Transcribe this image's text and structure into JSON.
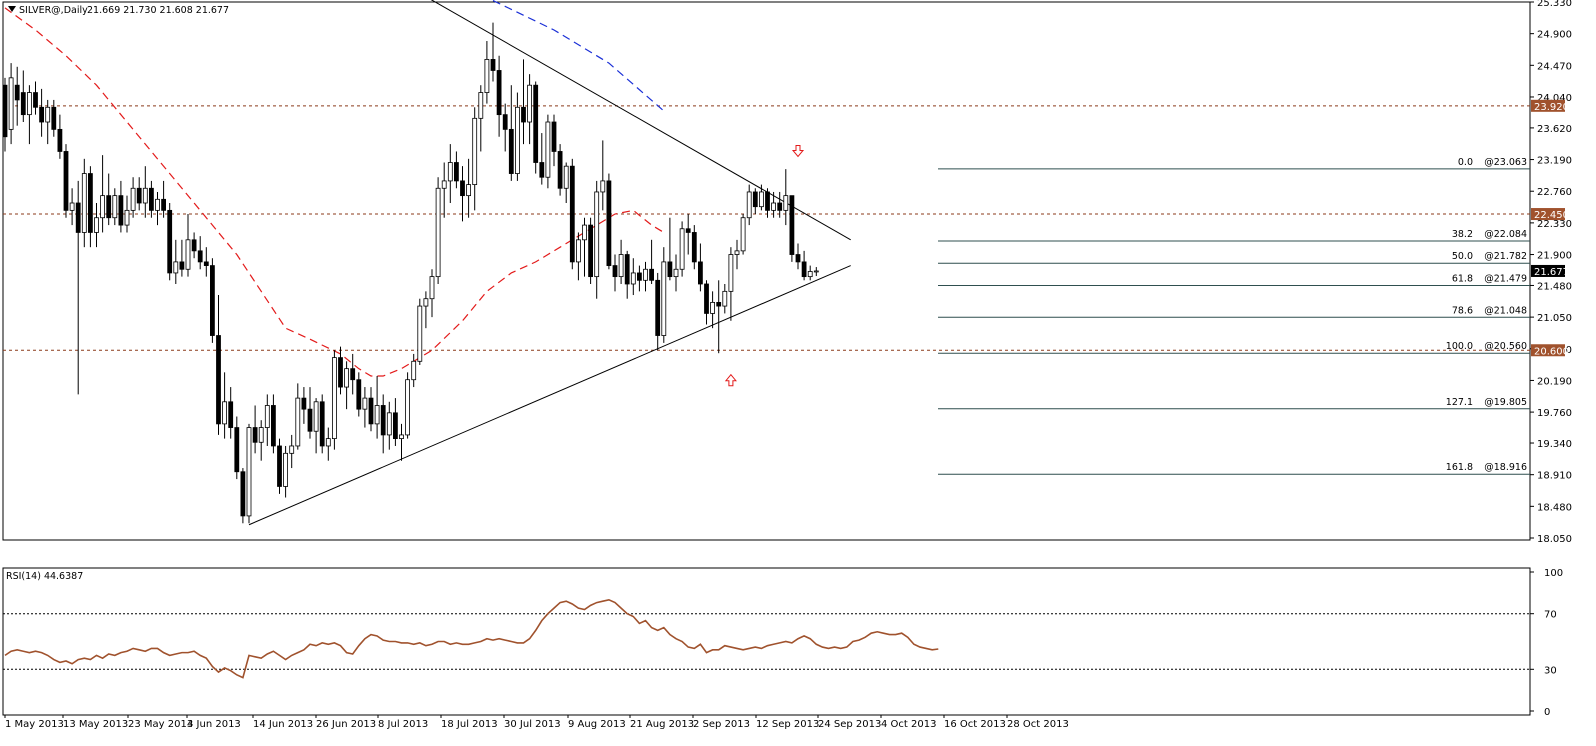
{
  "header": {
    "symbol_timeframe": "SILVER@,Daily",
    "ohlc": "21.669 21.730 21.608 21.677"
  },
  "rsi_header": "RSI(14) 44.6387",
  "colors": {
    "background": "#ffffff",
    "frame": "#000000",
    "bull_body": "#ffffff",
    "bear_body": "#000000",
    "ma_fast": "#e31b1b",
    "ma_slow": "#1a2fd6",
    "level_line": "#8b3a1a",
    "fib_line": "#2f4f4f",
    "trend_line": "#000000",
    "rsi_line": "#a0522d",
    "price_tag": "#a0522d",
    "current_tag": "#000000",
    "arrow": "#e31b1b"
  },
  "chart_data": [
    {
      "type": "candlestick",
      "title": "SILVER@,Daily",
      "y_axis_ticks": [
        "25.330",
        "24.900",
        "24.470",
        "24.040",
        "23.620",
        "23.190",
        "22.760",
        "22.330",
        "21.900",
        "21.480",
        "21.050",
        "20.620",
        "20.190",
        "19.760",
        "19.340",
        "18.910",
        "18.480",
        "18.050"
      ],
      "ylim": [
        18.05,
        25.33
      ],
      "x_axis_labels": [
        "1 May 2013",
        "13 May 2013",
        "23 May 2013",
        "4 Jun 2013",
        "14 Jun 2013",
        "26 Jun 2013",
        "8 Jul 2013",
        "18 Jul 2013",
        "30 Jul 2013",
        "9 Aug 2013",
        "21 Aug 2013",
        "2 Sep 2013",
        "12 Sep 2013",
        "24 Sep 2013",
        "4 Oct 2013",
        "16 Oct 2013",
        "28 Oct 2013"
      ],
      "horizontal_levels": [
        {
          "price": 23.92,
          "label": "23.920"
        },
        {
          "price": 22.45,
          "label": "22.450"
        },
        {
          "price": 20.6,
          "label": "20.600"
        }
      ],
      "current_price": {
        "price": 21.677,
        "label": "21.677"
      },
      "fibonacci": [
        {
          "ratio": "0.0",
          "value": 23.063,
          "label": "@23.063"
        },
        {
          "ratio": "38.2",
          "value": 22.084,
          "label": "@22.084"
        },
        {
          "ratio": "50.0",
          "value": 21.782,
          "label": "@21.782"
        },
        {
          "ratio": "61.8",
          "value": 21.479,
          "label": "@21.479"
        },
        {
          "ratio": "78.6",
          "value": 21.048,
          "label": "@21.048"
        },
        {
          "ratio": "100.0",
          "value": 20.56,
          "label": "@20.560"
        },
        {
          "ratio": "127.1",
          "value": 19.805,
          "label": "@19.805"
        },
        {
          "ratio": "161.8",
          "value": 18.916,
          "label": "@18.916"
        }
      ],
      "trend_lines": [
        {
          "name": "descending resistance",
          "from": {
            "date": "2013-08-05",
            "price": 25.45
          },
          "to": {
            "date": "2013-11-08",
            "price": 22.1
          }
        },
        {
          "name": "ascending support",
          "from": {
            "date": "2013-06-26",
            "price": 18.23
          },
          "to": {
            "date": "2013-11-08",
            "price": 21.75
          }
        }
      ],
      "moving_averages": [
        {
          "style": "dashed",
          "color": "red",
          "points": [
            [
              0,
              25.25
            ],
            [
              5,
              24.95
            ],
            [
              10,
              24.6
            ],
            [
              15,
              24.2
            ],
            [
              20,
              23.7
            ],
            [
              25,
              23.2
            ],
            [
              30,
              22.7
            ],
            [
              33,
              22.4
            ],
            [
              38,
              21.9
            ],
            [
              42,
              21.4
            ],
            [
              46,
              20.9
            ],
            [
              50,
              20.75
            ],
            [
              55,
              20.55
            ],
            [
              58,
              20.35
            ],
            [
              60,
              20.25
            ],
            [
              62,
              20.25
            ],
            [
              65,
              20.35
            ],
            [
              70,
              20.6
            ],
            [
              75,
              21.0
            ],
            [
              79,
              21.4
            ],
            [
              83,
              21.65
            ],
            [
              87,
              21.8
            ],
            [
              91,
              22.0
            ],
            [
              96,
              22.25
            ],
            [
              100,
              22.45
            ],
            [
              103,
              22.5
            ],
            [
              106,
              22.3
            ],
            [
              108,
              22.2
            ]
          ]
        },
        {
          "style": "dashed",
          "color": "blue",
          "points": [
            [
              80,
              25.35
            ],
            [
              90,
              24.95
            ],
            [
              99,
              24.5
            ],
            [
              108,
              23.85
            ]
          ]
        }
      ],
      "arrows": [
        {
          "direction": "down",
          "date": "2013-10-30",
          "price": 23.3
        },
        {
          "direction": "up",
          "date": "2013-10-15",
          "price": 20.2
        }
      ],
      "candles": [
        [
          24.2,
          24.3,
          23.3,
          23.5
        ],
        [
          23.6,
          24.5,
          23.4,
          24.3
        ],
        [
          24.2,
          24.45,
          23.65,
          24.0
        ],
        [
          24.1,
          24.4,
          23.7,
          23.8
        ],
        [
          23.8,
          24.2,
          23.4,
          24.1
        ],
        [
          24.1,
          24.25,
          23.8,
          23.9
        ],
        [
          23.9,
          24.15,
          23.5,
          23.7
        ],
        [
          23.7,
          24.0,
          23.4,
          23.9
        ],
        [
          23.9,
          24.0,
          23.5,
          23.6
        ],
        [
          23.6,
          23.8,
          23.2,
          23.3
        ],
        [
          23.3,
          23.4,
          22.4,
          22.5
        ],
        [
          22.5,
          22.8,
          22.3,
          22.6
        ],
        [
          22.6,
          22.9,
          20.0,
          22.2
        ],
        [
          22.2,
          23.2,
          22.0,
          23.0
        ],
        [
          23.0,
          23.1,
          22.0,
          22.2
        ],
        [
          22.2,
          22.6,
          22.0,
          22.4
        ],
        [
          22.4,
          23.25,
          22.2,
          22.7
        ],
        [
          22.7,
          23.0,
          22.3,
          22.4
        ],
        [
          22.4,
          22.8,
          22.3,
          22.7
        ],
        [
          22.7,
          22.9,
          22.2,
          22.3
        ],
        [
          22.3,
          22.7,
          22.2,
          22.5
        ],
        [
          22.5,
          22.95,
          22.4,
          22.8
        ],
        [
          22.8,
          22.95,
          22.5,
          22.6
        ],
        [
          22.6,
          23.1,
          22.4,
          22.8
        ],
        [
          22.8,
          22.9,
          22.4,
          22.5
        ],
        [
          22.5,
          22.75,
          22.3,
          22.65
        ],
        [
          22.65,
          22.9,
          22.4,
          22.5
        ],
        [
          22.5,
          22.6,
          21.55,
          21.65
        ],
        [
          21.65,
          22.1,
          21.5,
          21.8
        ],
        [
          21.8,
          22.1,
          21.6,
          21.7
        ],
        [
          21.7,
          22.45,
          21.6,
          22.1
        ],
        [
          22.1,
          22.2,
          21.85,
          21.95
        ],
        [
          21.95,
          22.15,
          21.7,
          21.8
        ],
        [
          21.8,
          22.0,
          21.6,
          21.75
        ],
        [
          21.75,
          21.85,
          20.7,
          20.8
        ],
        [
          20.8,
          21.35,
          19.45,
          19.6
        ],
        [
          19.6,
          20.3,
          19.4,
          19.9
        ],
        [
          19.9,
          20.1,
          19.4,
          19.55
        ],
        [
          19.55,
          19.7,
          18.85,
          18.95
        ],
        [
          18.95,
          19.0,
          18.25,
          18.35
        ],
        [
          18.35,
          19.6,
          18.25,
          19.55
        ],
        [
          19.55,
          19.85,
          19.2,
          19.35
        ],
        [
          19.35,
          19.65,
          19.1,
          19.55
        ],
        [
          19.55,
          20.0,
          19.3,
          19.85
        ],
        [
          19.85,
          20.0,
          19.2,
          19.3
        ],
        [
          19.3,
          19.4,
          18.65,
          18.75
        ],
        [
          18.75,
          19.3,
          18.6,
          19.2
        ],
        [
          19.2,
          19.45,
          19.0,
          19.3
        ],
        [
          19.3,
          20.15,
          19.25,
          19.95
        ],
        [
          19.95,
          20.1,
          19.6,
          19.8
        ],
        [
          19.8,
          20.1,
          19.4,
          19.5
        ],
        [
          19.5,
          19.95,
          19.2,
          19.9
        ],
        [
          19.9,
          20.0,
          19.2,
          19.3
        ],
        [
          19.3,
          19.55,
          19.1,
          19.4
        ],
        [
          19.4,
          20.6,
          19.25,
          20.5
        ],
        [
          20.5,
          20.65,
          20.0,
          20.1
        ],
        [
          20.1,
          20.45,
          19.8,
          20.35
        ],
        [
          20.35,
          20.55,
          20.0,
          20.2
        ],
        [
          20.2,
          20.3,
          19.7,
          19.8
        ],
        [
          19.8,
          20.1,
          19.55,
          19.95
        ],
        [
          19.95,
          20.1,
          19.5,
          19.6
        ],
        [
          19.6,
          20.25,
          19.4,
          19.85
        ],
        [
          19.85,
          20.0,
          19.2,
          19.45
        ],
        [
          19.45,
          19.9,
          19.25,
          19.75
        ],
        [
          19.75,
          19.95,
          19.3,
          19.4
        ],
        [
          19.4,
          19.6,
          19.1,
          19.45
        ],
        [
          19.45,
          20.3,
          19.4,
          20.2
        ],
        [
          20.2,
          20.55,
          20.1,
          20.45
        ],
        [
          20.45,
          21.3,
          20.4,
          21.2
        ],
        [
          21.2,
          21.4,
          20.9,
          21.3
        ],
        [
          21.3,
          21.7,
          21.05,
          21.6
        ],
        [
          21.6,
          22.95,
          21.5,
          22.8
        ],
        [
          22.8,
          23.15,
          22.4,
          22.9
        ],
        [
          22.9,
          23.4,
          22.6,
          23.15
        ],
        [
          23.15,
          23.3,
          22.8,
          22.9
        ],
        [
          22.9,
          23.1,
          22.35,
          22.7
        ],
        [
          22.7,
          23.2,
          22.4,
          22.85
        ],
        [
          22.85,
          23.9,
          22.5,
          23.75
        ],
        [
          23.75,
          24.2,
          23.3,
          24.1
        ],
        [
          24.1,
          24.8,
          23.95,
          24.55
        ],
        [
          24.55,
          25.05,
          24.25,
          24.4
        ],
        [
          24.4,
          24.6,
          23.5,
          23.8
        ],
        [
          23.8,
          23.95,
          23.3,
          23.6
        ],
        [
          23.6,
          24.2,
          22.9,
          23.0
        ],
        [
          23.0,
          24.1,
          22.9,
          23.9
        ],
        [
          23.9,
          24.55,
          23.4,
          23.7
        ],
        [
          23.7,
          24.35,
          23.4,
          24.2
        ],
        [
          24.2,
          24.25,
          23.0,
          23.15
        ],
        [
          23.15,
          23.55,
          22.85,
          22.95
        ],
        [
          22.95,
          23.8,
          22.8,
          23.7
        ],
        [
          23.7,
          23.8,
          23.1,
          23.3
        ],
        [
          23.3,
          23.4,
          22.7,
          22.8
        ],
        [
          22.8,
          23.15,
          22.6,
          23.1
        ],
        [
          23.1,
          23.2,
          21.7,
          21.8
        ],
        [
          21.8,
          22.2,
          21.55,
          22.1
        ],
        [
          22.1,
          22.4,
          21.6,
          22.3
        ],
        [
          22.3,
          22.4,
          21.5,
          21.6
        ],
        [
          21.6,
          22.9,
          21.3,
          22.75
        ],
        [
          22.75,
          23.45,
          22.5,
          22.9
        ],
        [
          22.9,
          23.0,
          21.7,
          21.75
        ],
        [
          21.75,
          21.9,
          21.4,
          21.6
        ],
        [
          21.6,
          22.1,
          21.5,
          21.9
        ],
        [
          21.9,
          21.95,
          21.3,
          21.5
        ],
        [
          21.5,
          21.85,
          21.35,
          21.65
        ],
        [
          21.65,
          21.75,
          21.4,
          21.55
        ],
        [
          21.55,
          21.8,
          21.4,
          21.7
        ],
        [
          21.7,
          22.1,
          21.5,
          21.55
        ],
        [
          21.55,
          21.65,
          20.6,
          20.8
        ],
        [
          20.8,
          22.0,
          20.7,
          21.8
        ],
        [
          21.8,
          22.4,
          21.55,
          21.6
        ],
        [
          21.6,
          21.9,
          21.4,
          21.7
        ],
        [
          21.7,
          22.35,
          21.6,
          22.25
        ],
        [
          22.25,
          22.45,
          21.9,
          22.2
        ],
        [
          22.2,
          22.3,
          21.7,
          21.8
        ],
        [
          21.8,
          22.05,
          21.4,
          21.5
        ],
        [
          21.5,
          21.55,
          20.95,
          21.1
        ],
        [
          21.1,
          21.4,
          20.9,
          21.25
        ],
        [
          21.25,
          21.55,
          20.56,
          21.2
        ],
        [
          21.2,
          21.5,
          21.1,
          21.4
        ],
        [
          21.4,
          22.0,
          21.0,
          21.9
        ],
        [
          21.9,
          22.1,
          21.7,
          21.95
        ],
        [
          21.95,
          22.45,
          21.9,
          22.4
        ],
        [
          22.4,
          22.85,
          22.3,
          22.75
        ],
        [
          22.75,
          22.8,
          22.45,
          22.55
        ],
        [
          22.55,
          22.85,
          22.5,
          22.75
        ],
        [
          22.75,
          22.8,
          22.4,
          22.5
        ],
        [
          22.5,
          22.75,
          22.4,
          22.6
        ],
        [
          22.6,
          22.75,
          22.4,
          22.5
        ],
        [
          22.5,
          23.06,
          22.3,
          22.7
        ],
        [
          22.7,
          22.7,
          21.8,
          21.9
        ],
        [
          21.9,
          22.05,
          21.7,
          21.8
        ],
        [
          21.8,
          21.95,
          21.55,
          21.6
        ],
        [
          21.6,
          21.75,
          21.55,
          21.67
        ],
        [
          21.669,
          21.73,
          21.608,
          21.677
        ]
      ]
    },
    {
      "type": "line",
      "title": "RSI(14) 44.6387",
      "y_axis_ticks": [
        "100",
        "70",
        "30",
        "0"
      ],
      "ylim": [
        0,
        100
      ],
      "reference_levels": [
        70,
        30
      ],
      "values": [
        40,
        43,
        44,
        43,
        42,
        43,
        42,
        40,
        37,
        35,
        36,
        34,
        37,
        38,
        37,
        40,
        38,
        41,
        40,
        42,
        43,
        45,
        44,
        43,
        45,
        45,
        42,
        40,
        41,
        42,
        42,
        43,
        40,
        38,
        32,
        28,
        31,
        29,
        26,
        24,
        40,
        39,
        38,
        41,
        43,
        40,
        37,
        40,
        42,
        44,
        48,
        47,
        49,
        48,
        49,
        47,
        42,
        41,
        47,
        52,
        55,
        54,
        51,
        50,
        50,
        49,
        49,
        48,
        49,
        47,
        48,
        50,
        50,
        48,
        49,
        48,
        48,
        49,
        50,
        52,
        51,
        52,
        51,
        50,
        49,
        49,
        52,
        58,
        65,
        70,
        74,
        78,
        79,
        77,
        74,
        73,
        76,
        78,
        79,
        80,
        78,
        74,
        70,
        68,
        63,
        65,
        60,
        58,
        60,
        55,
        52,
        50,
        46,
        45,
        48,
        42,
        44,
        44,
        47,
        46,
        45,
        44,
        45,
        46,
        45,
        47,
        48,
        49,
        50,
        49,
        52,
        54,
        52,
        48,
        46,
        45,
        46,
        45,
        46,
        50,
        51,
        53,
        56,
        57,
        56,
        55,
        55,
        56,
        53,
        48,
        46,
        45,
        44,
        44.6
      ]
    }
  ]
}
